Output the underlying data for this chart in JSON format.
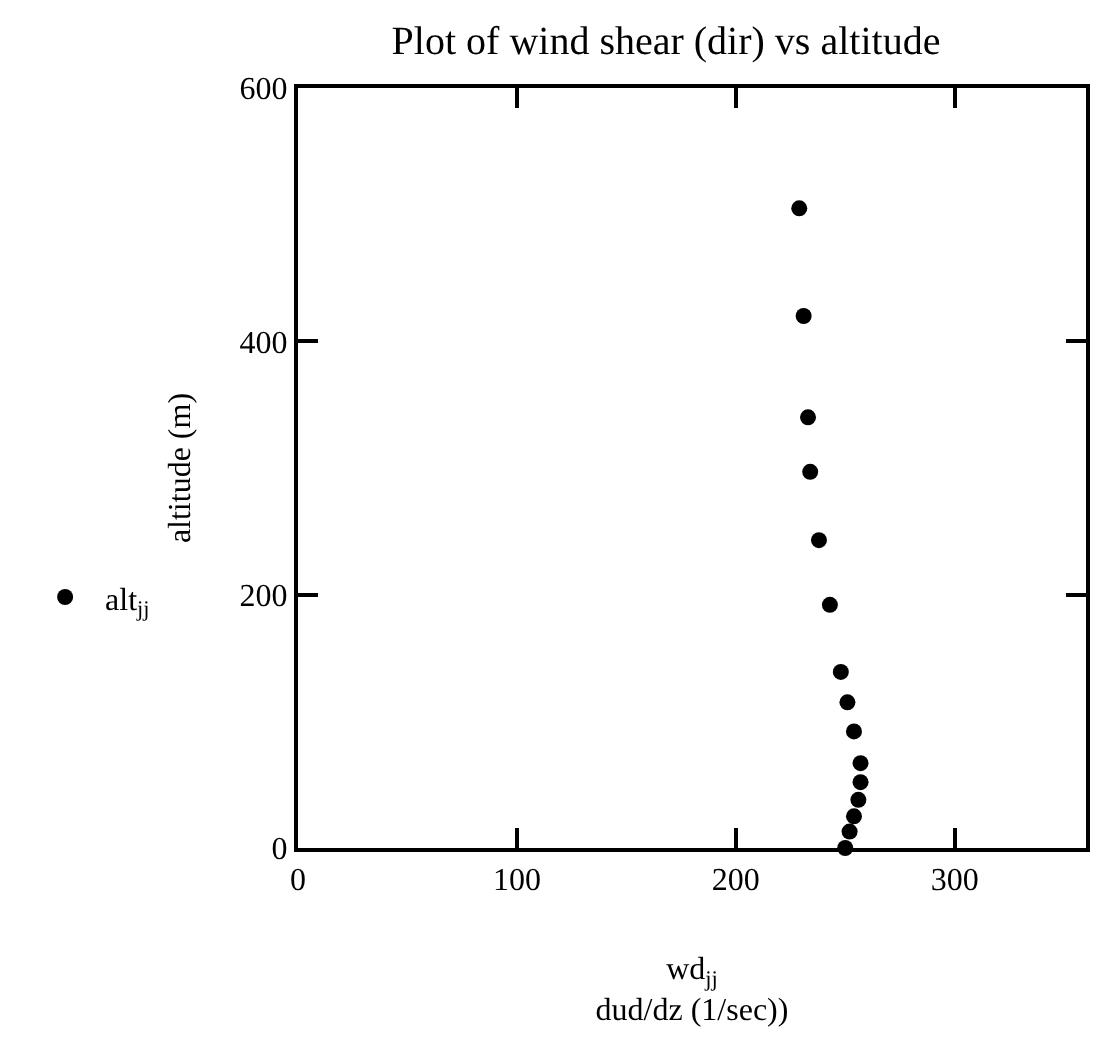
{
  "chart_data": {
    "type": "scatter",
    "title": "Plot of wind shear (dir) vs altitude",
    "xlabel": "wd$_{jj}$\ndud/dz (1/sec))",
    "ylabel": "altitude (m)",
    "x": [
      229,
      231,
      233,
      234,
      238,
      243,
      248,
      251,
      254,
      257,
      257,
      256,
      254,
      252,
      250
    ],
    "series": [
      {
        "name": "alt$_{jj}$",
        "color": "#000000",
        "values": [
          505,
          420,
          340,
          297,
          243,
          192,
          139,
          115,
          92,
          67,
          52,
          38,
          25,
          13,
          0
        ]
      }
    ],
    "xlim": [
      0,
      360
    ],
    "xticks": [
      0,
      100,
      200,
      300
    ],
    "ylim": [
      0,
      600
    ],
    "yticks": [
      0,
      200,
      400,
      600
    ],
    "grid": false,
    "legend": "left",
    "marker": "circle"
  }
}
